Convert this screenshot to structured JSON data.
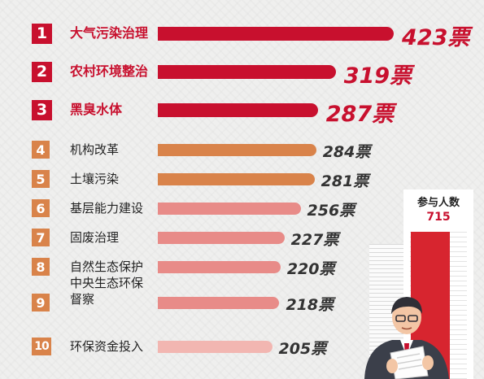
{
  "chart_data": {
    "type": "bar",
    "orientation": "horizontal",
    "categories": [
      "大气污染治理",
      "农村环境整治",
      "黑臭水体",
      "机构改革",
      "土壤污染",
      "基层能力建设",
      "固废治理",
      "自然生态保护",
      "中央生态环保督察",
      "环保资金投入"
    ],
    "ranks": [
      "1",
      "2",
      "3",
      "4",
      "5",
      "6",
      "7",
      "8",
      "9",
      "10"
    ],
    "values": [
      423,
      319,
      287,
      284,
      281,
      256,
      227,
      220,
      218,
      205
    ],
    "value_labels": [
      "423票",
      "319票",
      "287票",
      "284票",
      "281票",
      "256票",
      "227票",
      "220票",
      "218票",
      "205票"
    ],
    "unit": "票",
    "category_lines": [
      [
        "大气污染治理"
      ],
      [
        "农村环境整治"
      ],
      [
        "黑臭水体"
      ],
      [
        "机构改革"
      ],
      [
        "土壤污染"
      ],
      [
        "基层能力建设"
      ],
      [
        "固废治理"
      ],
      [
        "自然生态保护"
      ],
      [
        "中央生态环保",
        "督察"
      ],
      [
        "环保资金投入"
      ]
    ],
    "colors": {
      "tier1": "#c8102e",
      "tier2": "#d9834a",
      "tier3": "#e88b88",
      "tier4": "#f2b6b1",
      "label_gray": "#333333"
    }
  },
  "participants": {
    "title": "参与人数",
    "count": "715"
  },
  "illustration": {
    "figure": "person-reading-document-icon"
  }
}
